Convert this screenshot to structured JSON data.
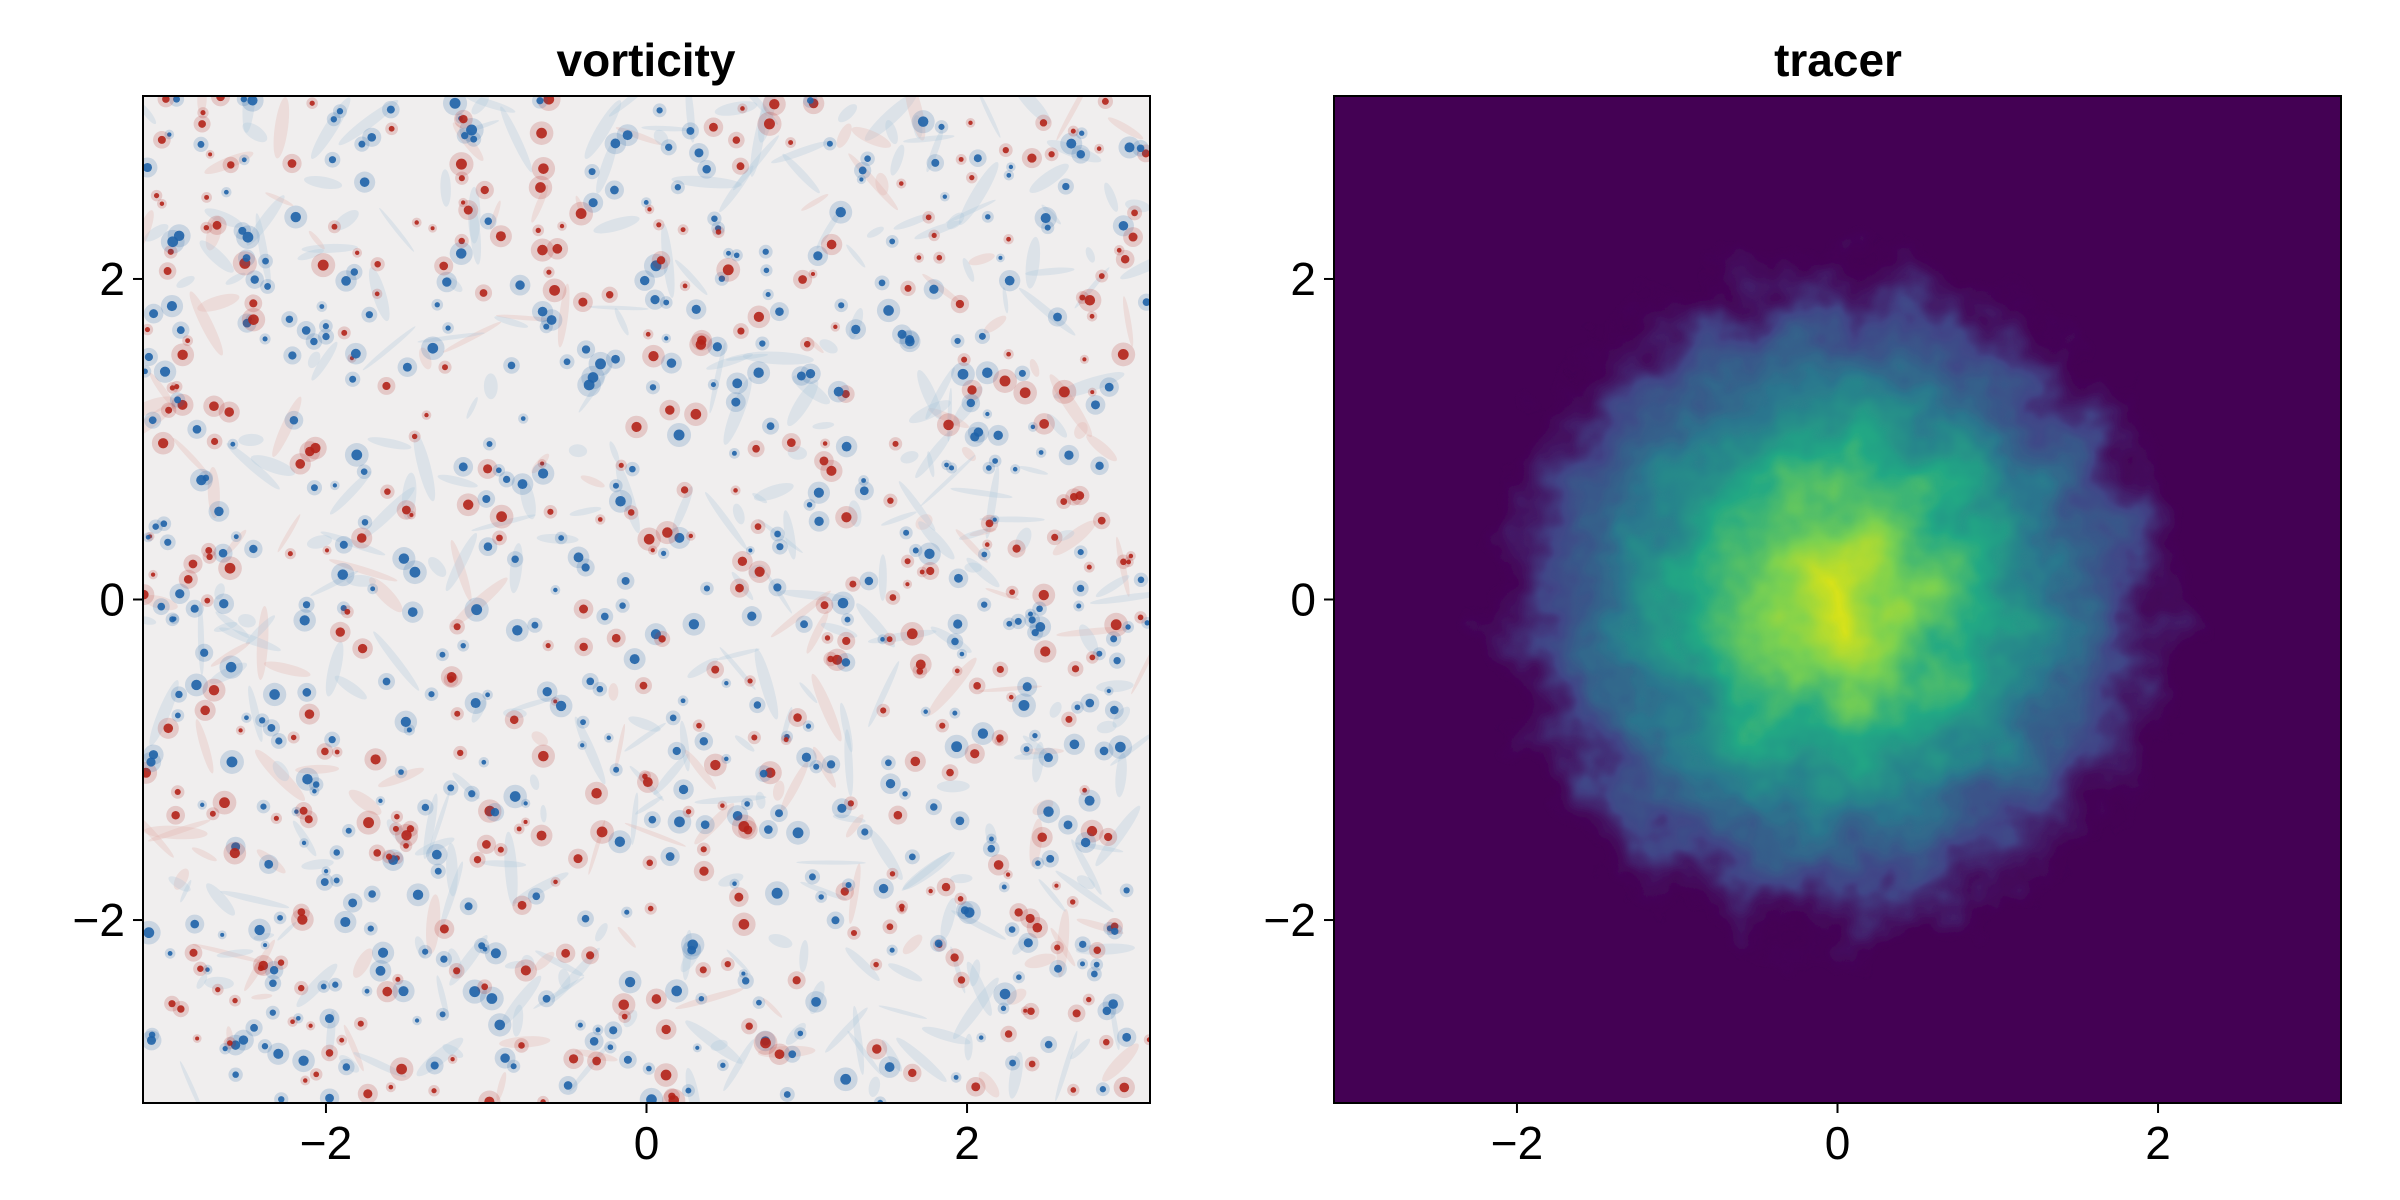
{
  "chart_data": [
    {
      "type": "heatmap",
      "title": "vorticity",
      "xlabel": "",
      "ylabel": "",
      "xlim": [
        -3.14159,
        3.14159
      ],
      "ylim": [
        -3.14159,
        3.14159
      ],
      "xticks": [
        -2,
        0,
        2
      ],
      "yticks": [
        -2,
        0,
        2
      ],
      "xtick_labels": [
        "−2",
        "0",
        "2"
      ],
      "ytick_labels": [
        "−2",
        "0",
        "2"
      ],
      "colormap": "balance (blue–white–red)",
      "colors": {
        "negative": "#1f63a8",
        "neutral": "#f0eeee",
        "positive": "#b2241a"
      },
      "field_description": "many small isolated vortices of both signs scattered uniformly over a near-zero background",
      "grid": false
    },
    {
      "type": "heatmap",
      "title": "tracer",
      "xlabel": "",
      "ylabel": "",
      "xlim": [
        -3.14159,
        3.14159
      ],
      "ylim": [
        -3.14159,
        3.14159
      ],
      "xticks": [
        -2,
        0,
        2
      ],
      "yticks": [
        -2,
        0,
        2
      ],
      "xtick_labels": [
        "−2",
        "0",
        "2"
      ],
      "ytick_labels": [
        "−2",
        "0",
        "2"
      ],
      "colormap": "viridis",
      "colors": {
        "low": "#440154",
        "mid": "#21908d",
        "high": "#fde725"
      },
      "field_description": "turbulently mixed blob centered near the origin, maximum near (0, 0), decaying to zero by radius about 1.5",
      "blob_center": [
        0.0,
        0.0
      ],
      "blob_radius": 1.4,
      "grid": false
    }
  ]
}
